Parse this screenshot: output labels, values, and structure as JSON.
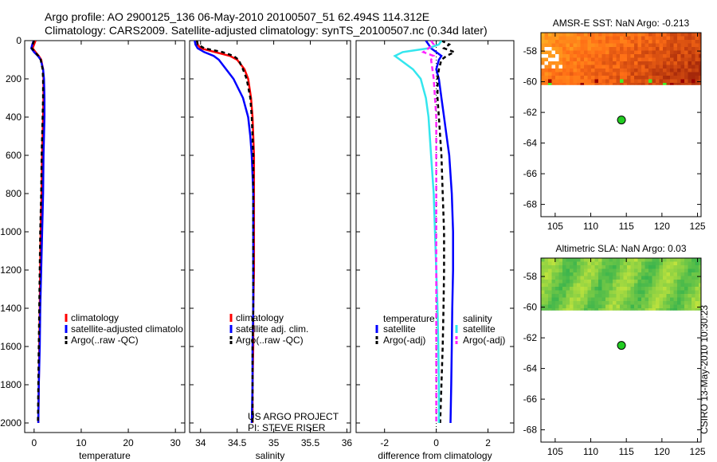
{
  "title_line1": "Argo profile: AO 2900125_136 06-May-2010 20100507_51 62.494S 114.312E",
  "title_line2": "Climatology: CARS2009. Satellite-adjusted climatology: synTS_20100507.nc (0.34d later)",
  "credit": "CSIRO 13-May-2010 10:30:23",
  "colors": {
    "red": "#ff0000",
    "blue": "#0000ff",
    "black": "#000000",
    "cyan": "#33e6ee",
    "magenta": "#ff22ff",
    "marker": "#22cc22"
  },
  "chart_data": [
    {
      "type": "line",
      "name": "temperature-panel",
      "xlabel": "temperature",
      "ylabel": "",
      "xlim": [
        -2,
        32
      ],
      "ylim": [
        2050,
        0
      ],
      "xticks": [
        0,
        10,
        20,
        30
      ],
      "yticks": [
        0,
        200,
        400,
        600,
        800,
        1000,
        1200,
        1400,
        1600,
        1800,
        2000
      ],
      "legend": [
        "climatology",
        "satellite-adjusted climatolo",
        "Argo(..raw -QC)"
      ],
      "legend_position": "lower-right",
      "annotations": [],
      "series": [
        {
          "name": "climatology",
          "color": "red",
          "dash": "",
          "depth": [
            0,
            20,
            40,
            60,
            80,
            100,
            150,
            200,
            300,
            400,
            500,
            600,
            800,
            1000,
            1200,
            1400,
            1600,
            1800,
            2000
          ],
          "values": [
            0.3,
            0.0,
            -0.3,
            0.3,
            1.0,
            1.5,
            1.9,
            2.0,
            2.0,
            1.9,
            1.8,
            1.7,
            1.6,
            1.4,
            1.3,
            1.2,
            1.1,
            1.0,
            0.9
          ]
        },
        {
          "name": "satellite-adjusted climatology",
          "color": "blue",
          "dash": "",
          "depth": [
            0,
            20,
            40,
            60,
            80,
            100,
            150,
            200,
            300,
            400,
            500,
            600,
            800,
            1000,
            1200,
            1400,
            1600,
            1800,
            2000
          ],
          "values": [
            -0.1,
            -0.4,
            -0.6,
            0.0,
            0.8,
            1.4,
            1.9,
            2.1,
            2.2,
            2.2,
            2.1,
            2.0,
            1.9,
            1.7,
            1.5,
            1.3,
            1.2,
            1.0,
            0.9
          ]
        },
        {
          "name": "Argo(..raw -QC)",
          "color": "black",
          "dash": "5,4",
          "depth": [
            0,
            20,
            40,
            60,
            80,
            100,
            150,
            200,
            300,
            400,
            500,
            600,
            800,
            1000,
            1200,
            1400,
            1600,
            1800,
            2000
          ],
          "values": [
            0.0,
            -0.3,
            -0.5,
            0.2,
            0.9,
            1.4,
            1.8,
            1.9,
            1.9,
            1.8,
            1.7,
            1.6,
            1.5,
            1.3,
            1.2,
            1.1,
            1.0,
            0.9,
            0.8
          ]
        }
      ]
    },
    {
      "type": "line",
      "name": "salinity-panel",
      "xlabel": "salinity",
      "ylabel": "",
      "xlim": [
        33.85,
        36.05
      ],
      "ylim": [
        2050,
        0
      ],
      "xticks": [
        34,
        34.5,
        35,
        35.5,
        36
      ],
      "yticks": [
        0,
        200,
        400,
        600,
        800,
        1000,
        1200,
        1400,
        1600,
        1800,
        2000
      ],
      "legend": [
        "climatology",
        "satellite adj. clim.",
        "Argo(..raw -QC)"
      ],
      "legend_position": "lower-right",
      "annotations": [
        "US ARGO PROJECT",
        "PI: STEVE RISER"
      ],
      "series": [
        {
          "name": "climatology",
          "color": "red",
          "dash": "",
          "depth": [
            0,
            20,
            40,
            60,
            80,
            100,
            150,
            200,
            300,
            400,
            500,
            600,
            800,
            1000,
            1200,
            1400,
            1600,
            1800,
            2000
          ],
          "values": [
            33.95,
            33.96,
            34.0,
            34.2,
            34.4,
            34.5,
            34.6,
            34.65,
            34.69,
            34.71,
            34.72,
            34.73,
            34.73,
            34.73,
            34.73,
            34.72,
            34.72,
            34.71,
            34.71
          ]
        },
        {
          "name": "satellite adj. clim.",
          "color": "blue",
          "dash": "",
          "depth": [
            0,
            20,
            40,
            60,
            80,
            100,
            150,
            200,
            300,
            400,
            500,
            600,
            800,
            1000,
            1200,
            1400,
            1600,
            1800,
            2000
          ],
          "values": [
            33.92,
            33.93,
            33.96,
            34.05,
            34.18,
            34.25,
            34.35,
            34.45,
            34.58,
            34.65,
            34.68,
            34.7,
            34.72,
            34.72,
            34.72,
            34.72,
            34.71,
            34.71,
            34.7
          ]
        },
        {
          "name": "Argo(..raw -QC)",
          "color": "black",
          "dash": "5,4",
          "depth": [
            0,
            20,
            40,
            60,
            80,
            100,
            150,
            200,
            300,
            400,
            500,
            600,
            800,
            1000,
            1200,
            1400,
            1600,
            1800,
            2000
          ],
          "values": [
            33.95,
            33.96,
            34.05,
            34.3,
            34.45,
            34.52,
            34.58,
            34.63,
            34.68,
            34.7,
            34.71,
            34.72,
            34.72,
            34.72,
            34.72,
            34.72,
            34.71,
            34.71,
            34.71
          ]
        }
      ]
    },
    {
      "type": "line",
      "name": "difference-panel",
      "xlabel": "difference from climatology",
      "ylabel": "",
      "xlim": [
        -3.1,
        3.0
      ],
      "ylim": [
        2050,
        0
      ],
      "xticks": [
        -2,
        0,
        2
      ],
      "yticks": [
        0,
        200,
        400,
        600,
        800,
        1000,
        1200,
        1400,
        1600,
        1800,
        2000
      ],
      "legend_groups": [
        {
          "title": "temperature",
          "entries": [
            "satellite",
            "Argo(-adj)"
          ]
        },
        {
          "title": "salinity",
          "entries": [
            "satellite",
            "Argo(-adj)"
          ]
        }
      ],
      "legend_position": "lower-center",
      "annotations": [],
      "series": [
        {
          "name": "temperature satellite",
          "color": "blue",
          "dash": "",
          "depth": [
            0,
            20,
            40,
            60,
            80,
            100,
            150,
            200,
            300,
            400,
            500,
            600,
            800,
            1000,
            1200,
            1400,
            1600,
            1800,
            2000
          ],
          "values": [
            -0.4,
            -0.3,
            -0.2,
            0.0,
            0.2,
            0.1,
            0.0,
            0.1,
            0.2,
            0.3,
            0.4,
            0.5,
            0.6,
            0.65,
            0.65,
            0.62,
            0.6,
            0.58,
            0.55
          ]
        },
        {
          "name": "temperature Argo(-adj)",
          "color": "black",
          "dash": "5,4",
          "depth": [
            0,
            20,
            40,
            60,
            80,
            100,
            150,
            200,
            300,
            400,
            500,
            600,
            800,
            1000,
            1200,
            1400,
            1600,
            1800,
            2000
          ],
          "values": [
            0.2,
            0.5,
            0.3,
            0.7,
            0.4,
            0.2,
            0.1,
            0.05,
            0.05,
            0.1,
            0.15,
            0.2,
            0.25,
            0.3,
            0.3,
            0.28,
            0.25,
            0.2,
            0.15
          ]
        },
        {
          "name": "salinity satellite",
          "color": "cyan",
          "dash": "",
          "depth": [
            0,
            20,
            40,
            60,
            80,
            100,
            150,
            200,
            300,
            400,
            500,
            600,
            800,
            1000,
            1200,
            1400,
            1600,
            1800,
            2000
          ],
          "values": [
            0.2,
            0.1,
            -0.3,
            -1.3,
            -1.6,
            -1.4,
            -0.9,
            -0.6,
            -0.4,
            -0.3,
            -0.25,
            -0.2,
            -0.1,
            -0.05,
            0.0,
            0.05,
            0.08,
            0.1,
            0.1
          ]
        },
        {
          "name": "salinity Argo(-adj)",
          "color": "magenta",
          "dash": "6,4",
          "depth": [
            0,
            20,
            40,
            60,
            80,
            100,
            150,
            200,
            300,
            400,
            500,
            600,
            800,
            1000,
            1200,
            1400,
            1600,
            1800,
            2000
          ],
          "values": [
            -0.2,
            -0.1,
            -0.3,
            -0.5,
            -0.1,
            -0.2,
            -0.15,
            -0.1,
            -0.05,
            0.0,
            0.0,
            0.0,
            0.0,
            0.0,
            0.0,
            0.0,
            0.0,
            0.0,
            0.0
          ]
        }
      ]
    },
    {
      "type": "heatmap",
      "name": "sst-map",
      "title": "AMSR-E SST: NaN Argo: -0.213",
      "xlim": [
        103,
        125.5
      ],
      "ylim": [
        -68.8,
        -56.8
      ],
      "xticks": [
        105,
        110,
        115,
        120,
        125
      ],
      "yticks": [
        -58,
        -60,
        -62,
        -64,
        -66,
        -68
      ],
      "data_lat_range": [
        -56.8,
        -60.2
      ],
      "marker": {
        "lon": 114.312,
        "lat": -62.494
      },
      "palette": "orange"
    },
    {
      "type": "heatmap",
      "name": "sla-map",
      "title": "Altimetric SLA: NaN Argo: 0.03",
      "xlim": [
        103,
        125.5
      ],
      "ylim": [
        -68.8,
        -56.8
      ],
      "xticks": [
        105,
        110,
        115,
        120,
        125
      ],
      "yticks": [
        -58,
        -60,
        -62,
        -64,
        -66,
        -68
      ],
      "data_lat_range": [
        -56.8,
        -60.2
      ],
      "marker": {
        "lon": 114.312,
        "lat": -62.494
      },
      "palette": "green"
    }
  ]
}
